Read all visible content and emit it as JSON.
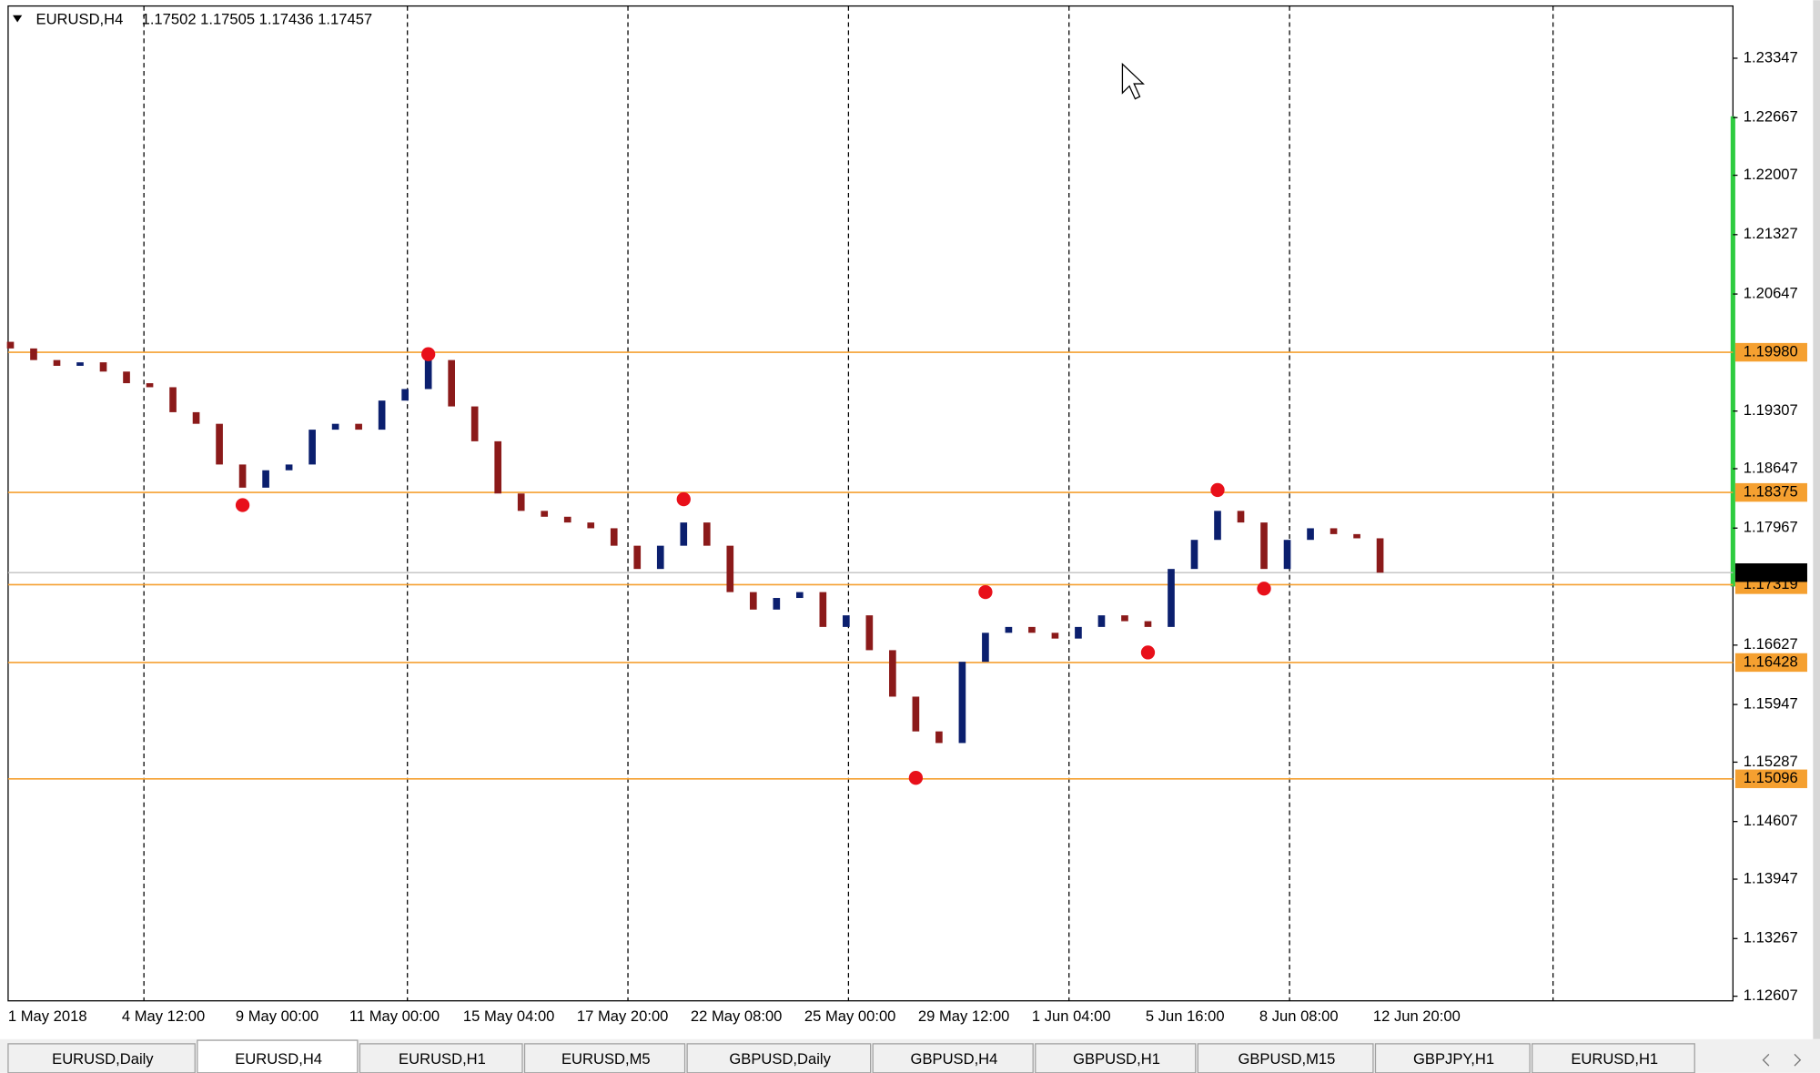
{
  "chart_data": {
    "type": "candlestick",
    "title": "EURUSD,H4",
    "subtitle": "1.17502 1.17505 1.17436 1.17457",
    "x_labels": [
      "1 May 2018",
      "4 May 12:00",
      "9 May 00:00",
      "11 May 00:00",
      "15 May 04:00",
      "17 May 20:00",
      "22 May 08:00",
      "25 May 00:00",
      "29 May 12:00",
      "1 Jun 04:00",
      "5 Jun 16:00",
      "8 Jun 08:00",
      "12 Jun 20:00"
    ],
    "open": [
      1.201,
      1.20024,
      1.19891,
      1.19825,
      1.19865,
      1.19759,
      1.19626,
      1.1958,
      1.19294,
      1.19161,
      1.18695,
      1.1843,
      1.18629,
      1.18695,
      1.19094,
      1.19161,
      1.19094,
      1.19427,
      1.19559,
      1.19891,
      1.1936,
      1.18961,
      1.18363,
      1.18164,
      1.18097,
      1.18031,
      1.17965,
      1.17765,
      1.17499,
      1.17765,
      1.18031,
      1.17765,
      1.17234,
      1.17034,
      1.17167,
      1.17234,
      1.16835,
      1.16968,
      1.16569,
      1.16037,
      1.15639,
      1.15506,
      1.16436,
      1.16768,
      1.16835,
      1.16768,
      1.16702,
      1.16835,
      1.16968,
      1.16901,
      1.16835,
      1.17499,
      1.17832,
      1.18164,
      1.18031,
      1.17499,
      1.17832,
      1.17965,
      1.17898,
      1.1785
    ],
    "close": [
      1.20024,
      1.19891,
      1.19825,
      1.19865,
      1.19759,
      1.19626,
      1.1958,
      1.19294,
      1.19161,
      1.18695,
      1.1843,
      1.18629,
      1.18695,
      1.19094,
      1.19161,
      1.19094,
      1.19427,
      1.19559,
      1.19891,
      1.1936,
      1.18961,
      1.18363,
      1.18164,
      1.18097,
      1.18031,
      1.17965,
      1.17765,
      1.17499,
      1.17765,
      1.18031,
      1.17765,
      1.17234,
      1.17034,
      1.17167,
      1.17234,
      1.16835,
      1.16968,
      1.16569,
      1.16037,
      1.15639,
      1.15506,
      1.16436,
      1.16768,
      1.16835,
      1.16768,
      1.16702,
      1.16835,
      1.16968,
      1.16901,
      1.16835,
      1.17499,
      1.17832,
      1.18164,
      1.18031,
      1.17499,
      1.17832,
      1.17965,
      1.17898,
      1.1785,
      1.17457
    ],
    "swing": [
      null,
      null,
      null,
      null,
      null,
      null,
      null,
      null,
      null,
      null,
      1.1823,
      null,
      null,
      null,
      null,
      null,
      null,
      null,
      1.19958,
      null,
      null,
      null,
      null,
      null,
      null,
      null,
      null,
      null,
      null,
      1.18297,
      null,
      null,
      null,
      null,
      null,
      null,
      null,
      null,
      null,
      1.15107,
      null,
      null,
      1.17234,
      null,
      null,
      null,
      null,
      null,
      null,
      1.16543,
      null,
      null,
      1.18403,
      null,
      1.17274,
      null,
      null,
      null,
      null,
      null
    ],
    "levels": [
      {
        "value": 1.1998,
        "label": "1.19980"
      },
      1.18375,
      1.17319,
      1.16428,
      1.15096
    ],
    "current_price": 1.17457,
    "bull_color": "#0b1f6e",
    "bear_color": "#8b1a1a",
    "level_color": "#f5a030",
    "swing_color": "#e8101a",
    "ylim": [
      1.12554,
      1.23945
    ],
    "yticks": [
      1.23347,
      1.22667,
      1.22007,
      1.21327,
      1.20647,
      1.19307,
      1.18647,
      1.17967,
      1.16627,
      1.15947,
      1.15287,
      1.14607,
      1.13947,
      1.13267,
      1.12607
    ]
  },
  "tabs": [
    "EURUSD,Daily",
    "EURUSD,H4",
    "EURUSD,H1",
    "EURUSD,M5",
    "GBPUSD,Daily",
    "GBPUSD,H4",
    "GBPUSD,H1",
    "GBPUSD,M15",
    "GBPJPY,H1",
    "EURUSD,H1"
  ]
}
